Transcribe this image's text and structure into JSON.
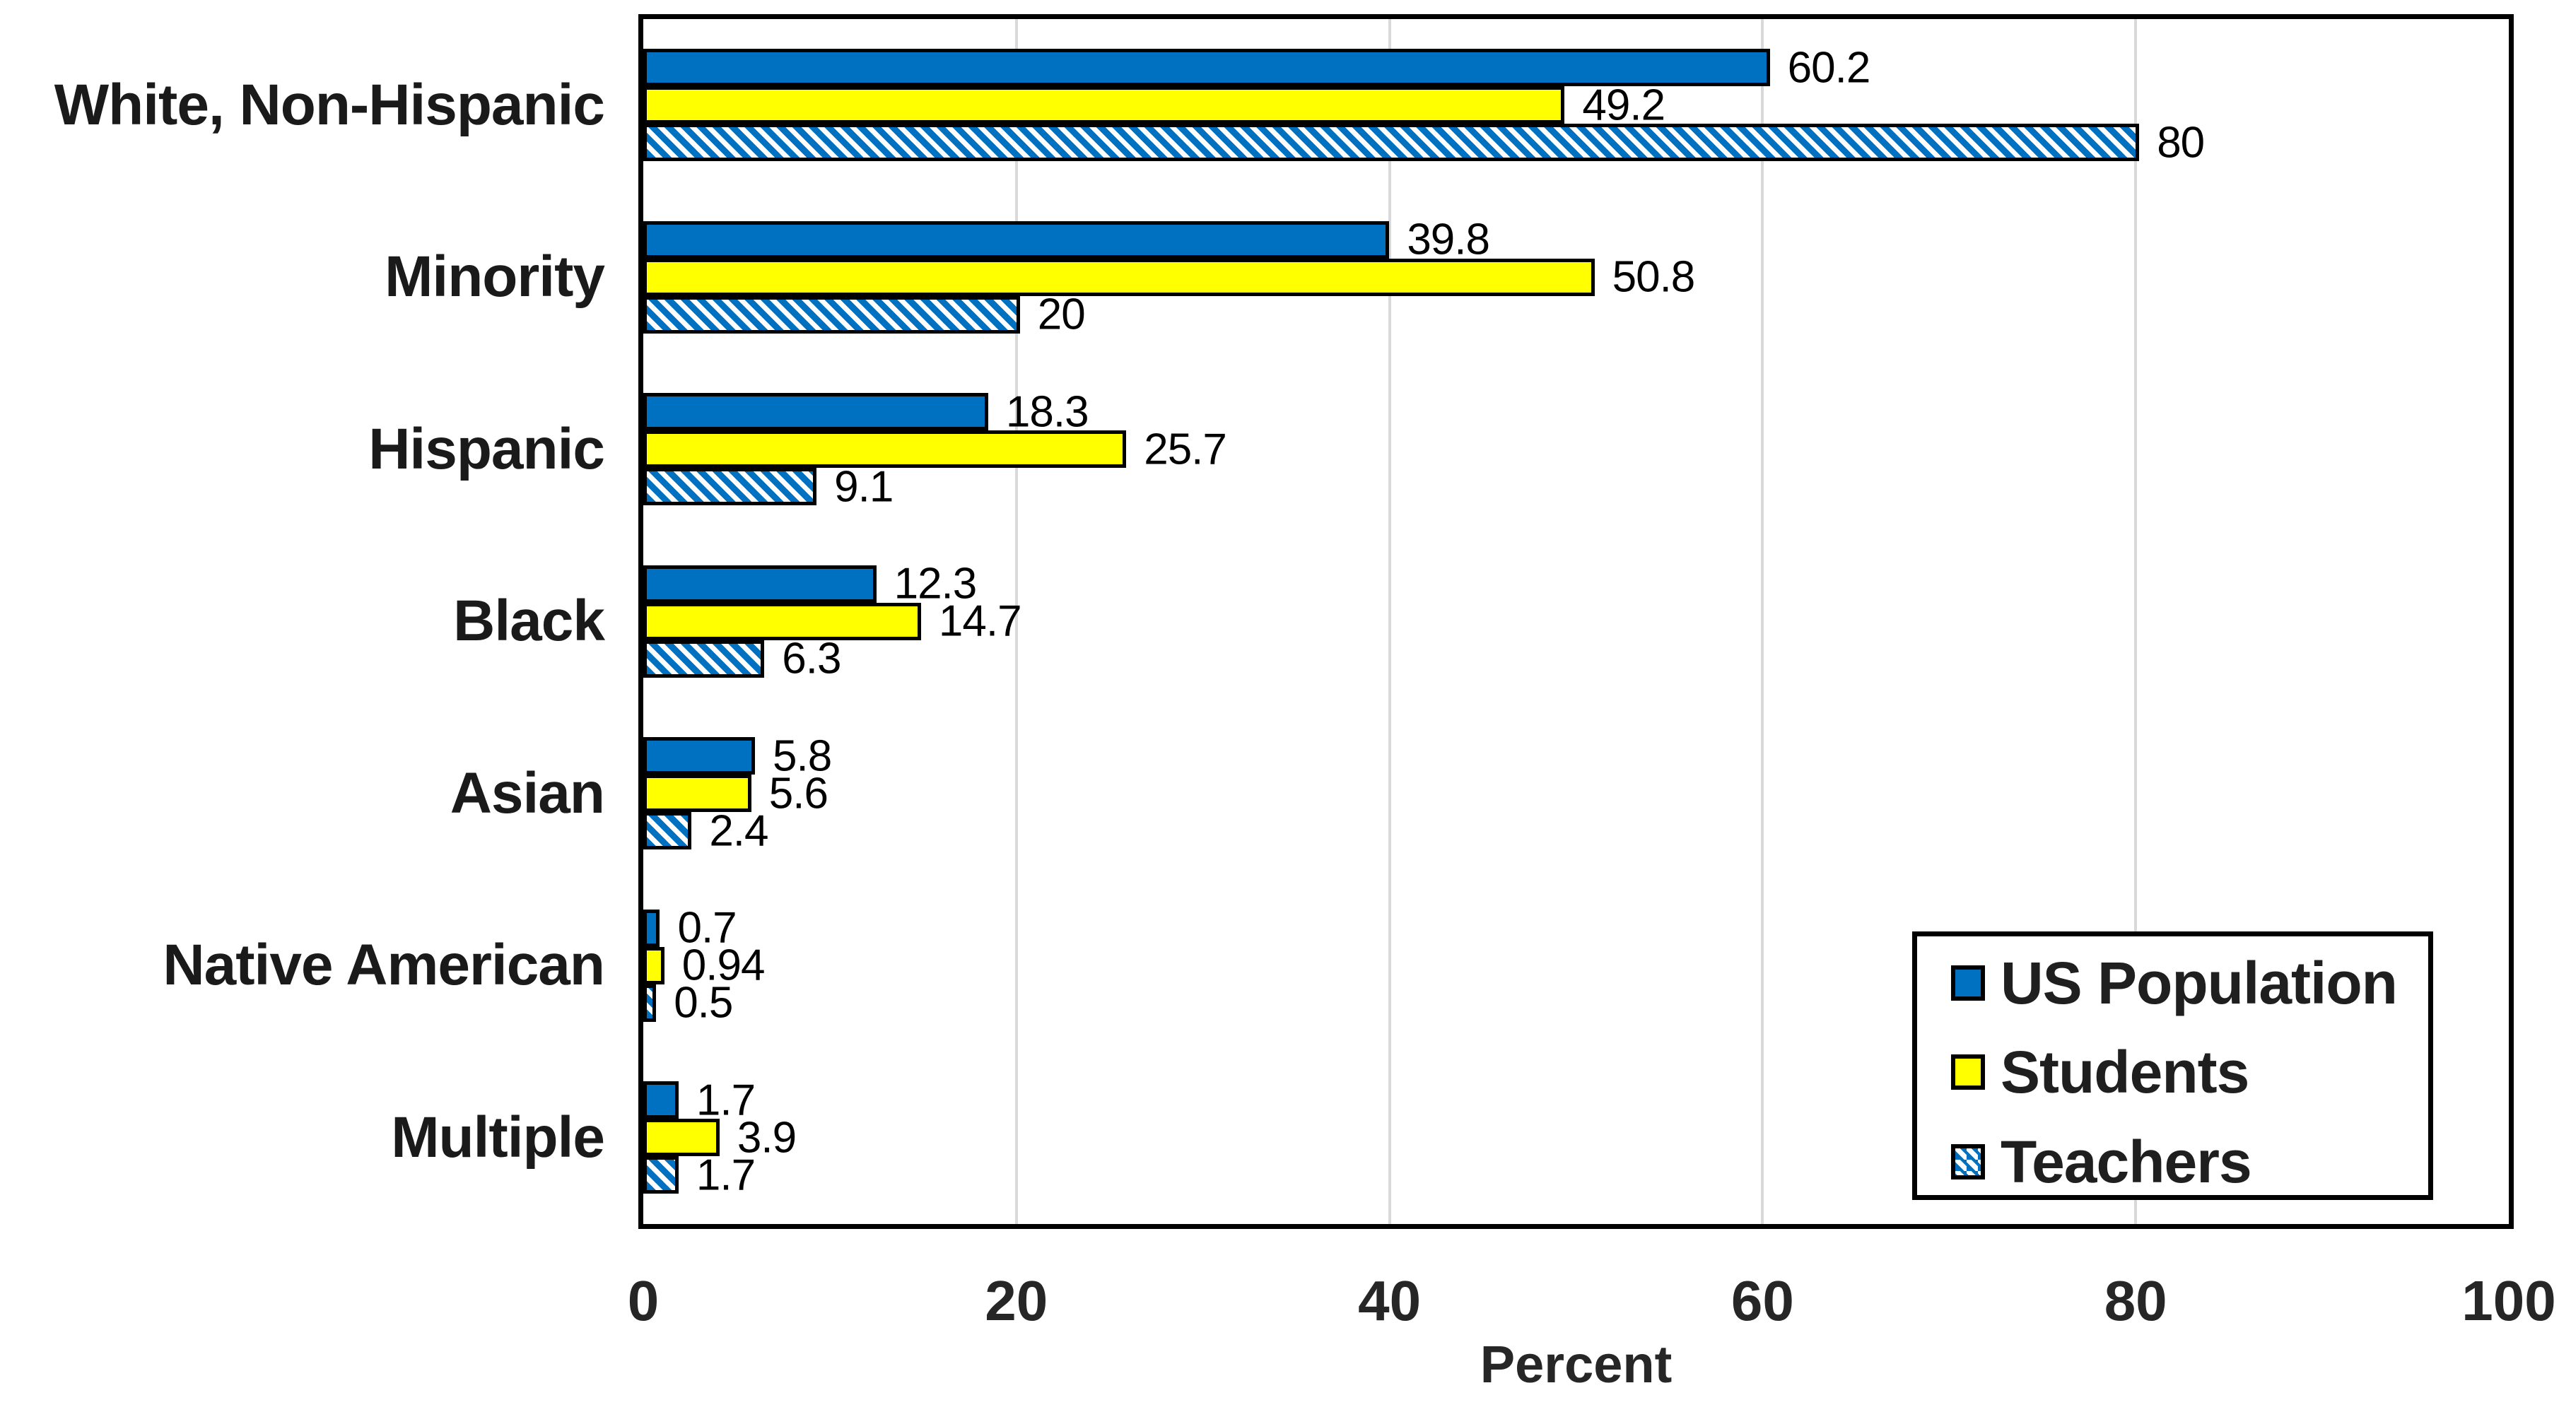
{
  "chart_data": {
    "type": "bar",
    "orientation": "horizontal",
    "title": "",
    "xlabel": "Percent",
    "xlim": [
      0,
      100
    ],
    "x_ticks": [
      "0",
      "20",
      "40",
      "60",
      "80",
      "100"
    ],
    "grid": "vertical gridlines every 20 percent",
    "legend_position": "inside bottom-right",
    "categories": [
      "White, Non-Hispanic",
      "Minority",
      "Hispanic",
      "Black",
      "Asian",
      "Native American",
      "Multiple"
    ],
    "series": [
      {
        "name": "US Population",
        "fill": "solid",
        "color": "#0070C0",
        "values": [
          60.2,
          39.8,
          18.3,
          12.3,
          5.8,
          0.7,
          1.7
        ],
        "value_labels": [
          "60.2",
          "39.8",
          "18.3",
          "12.3",
          "5.8",
          "0.7",
          "1.7"
        ]
      },
      {
        "name": "Students",
        "fill": "solid",
        "color": "#FFFF00",
        "values": [
          49.2,
          50.8,
          25.7,
          14.7,
          5.6,
          0.94,
          3.9
        ],
        "value_labels": [
          "49.2",
          "50.8",
          "25.7",
          "14.7",
          "5.6",
          "0.94",
          "3.9"
        ]
      },
      {
        "name": "Teachers",
        "fill": "diagonal-hatch",
        "color": "#0070C0",
        "hatch_background": "#FFFFFF",
        "values": [
          80,
          20,
          9.1,
          6.3,
          2.4,
          0.5,
          1.7
        ],
        "value_labels": [
          "80",
          "20",
          "9.1",
          "6.3",
          "2.4",
          "0.5",
          "1.7"
        ]
      }
    ]
  },
  "styles": {
    "background": "#FFFFFF",
    "bar_border_color": "#000000",
    "grid_color": "#D9D9D9",
    "frame_color": "#000000",
    "text_color": "#1A1A1A"
  }
}
